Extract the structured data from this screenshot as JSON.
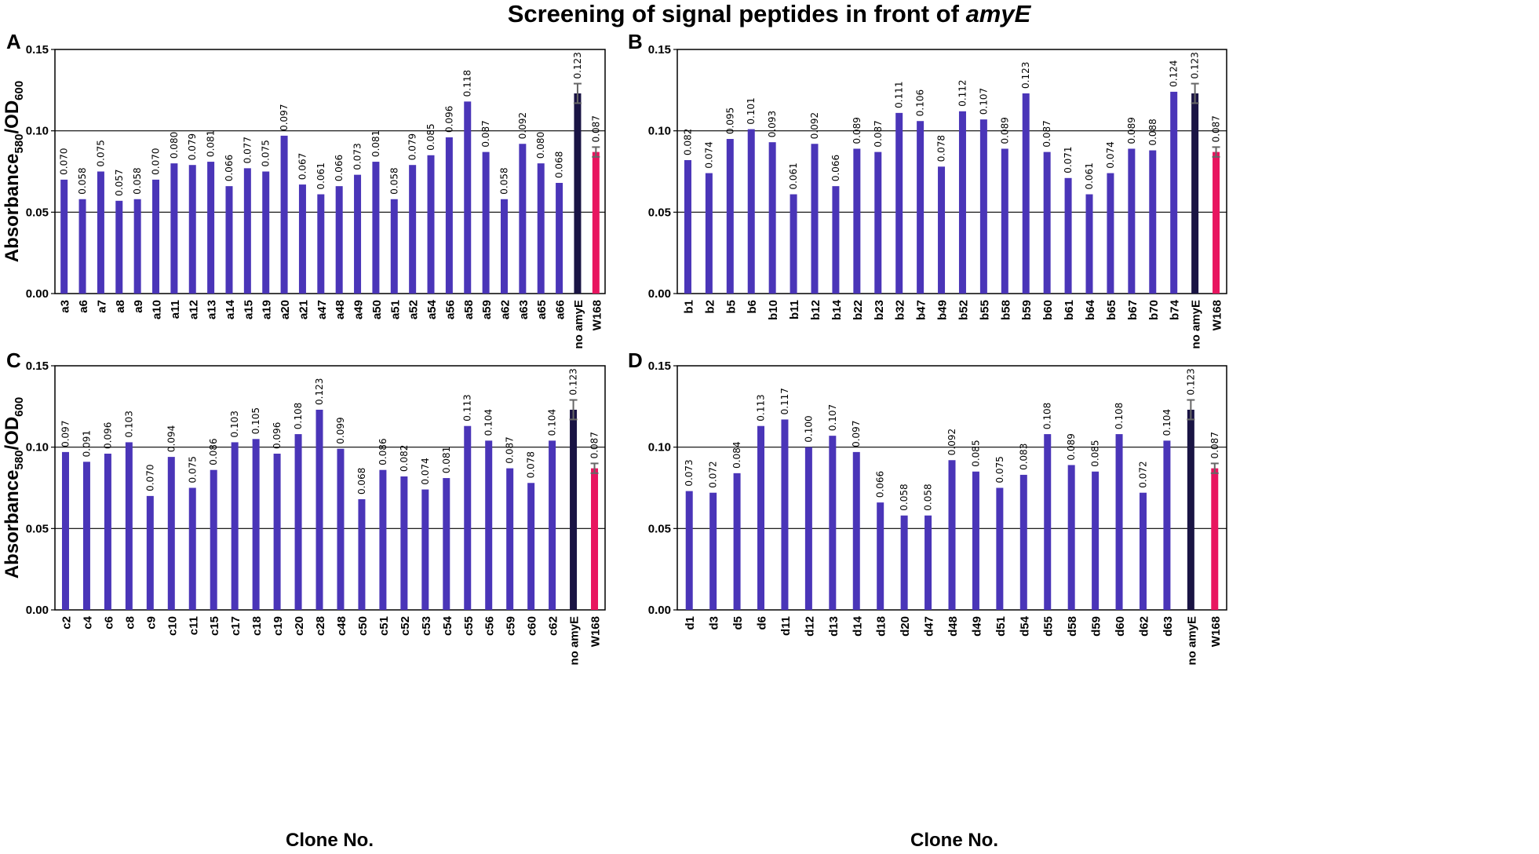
{
  "title": "Screening of signal peptides in front of ",
  "title_italic": "amyE",
  "ylabel_main": "Absorbance",
  "ylabel_sub1": "580",
  "ylabel_mid": "/OD",
  "ylabel_sub2": "600",
  "xlabel": "Clone No.",
  "colors": {
    "sample": "#4a35b8",
    "control_no_amyE": "#1a1444",
    "control_W168": "#e8155f",
    "error_bar": "#666666"
  },
  "chart_data": [
    {
      "panel": "A",
      "type": "bar",
      "ylim": [
        0,
        0.15
      ],
      "yticks": [
        "0.00",
        "0.05",
        "0.10",
        "0.15"
      ],
      "grid": "horizontal at 0.05 and 0.10",
      "categories": [
        "a3",
        "a6",
        "a7",
        "a8",
        "a9",
        "a10",
        "a11",
        "a12",
        "a13",
        "a14",
        "a15",
        "a19",
        "a20",
        "a21",
        "a47",
        "a48",
        "a49",
        "a50",
        "a51",
        "a52",
        "a54",
        "a56",
        "a58",
        "a59",
        "a62",
        "a63",
        "a65",
        "a66",
        "no amyE",
        "W168"
      ],
      "values": [
        0.07,
        0.058,
        0.075,
        0.057,
        0.058,
        0.07,
        0.08,
        0.079,
        0.081,
        0.066,
        0.077,
        0.075,
        0.097,
        0.067,
        0.061,
        0.066,
        0.073,
        0.081,
        0.058,
        0.079,
        0.085,
        0.096,
        0.118,
        0.087,
        0.058,
        0.092,
        0.08,
        0.068,
        0.123,
        0.087
      ],
      "value_labels": [
        "0.070",
        "0.058",
        "0.075",
        "0.057",
        "0.058",
        "0.070",
        "0.080",
        "0.079",
        "0.081",
        "0.066",
        "0.077",
        "0.075",
        "0.097",
        "0.067",
        "0.061",
        "0.066",
        "0.073",
        "0.081",
        "0.058",
        "0.079",
        "0.085",
        "0.096",
        "0.118",
        "0.087",
        "0.058",
        "0.092",
        "0.080",
        "0.068",
        "0.123",
        "0.087"
      ],
      "errors": {
        "no amyE": 0.006,
        "W168": 0.003
      }
    },
    {
      "panel": "B",
      "type": "bar",
      "ylim": [
        0,
        0.15
      ],
      "yticks": [
        "0.00",
        "0.05",
        "0.10",
        "0.15"
      ],
      "grid": "horizontal at 0.05 and 0.10",
      "categories": [
        "b1",
        "b2",
        "b5",
        "b6",
        "b10",
        "b11",
        "b12",
        "b14",
        "b22",
        "b23",
        "b32",
        "b47",
        "b49",
        "b52",
        "b55",
        "b58",
        "b59",
        "b60",
        "b61",
        "b64",
        "b65",
        "b67",
        "b70",
        "b74",
        "no amyE",
        "W168"
      ],
      "values": [
        0.082,
        0.074,
        0.095,
        0.101,
        0.093,
        0.061,
        0.092,
        0.066,
        0.089,
        0.087,
        0.111,
        0.106,
        0.078,
        0.112,
        0.107,
        0.089,
        0.123,
        0.087,
        0.071,
        0.061,
        0.074,
        0.089,
        0.088,
        0.124,
        0.123,
        0.087
      ],
      "value_labels": [
        "0.082",
        "0.074",
        "0.095",
        "0.101",
        "0.093",
        "0.061",
        "0.092",
        "0.066",
        "0.089",
        "0.087",
        "0.111",
        "0.106",
        "0.078",
        "0.112",
        "0.107",
        "0.089",
        "0.123",
        "0.087",
        "0.071",
        "0.061",
        "0.074",
        "0.089",
        "0.088",
        "0.124",
        "0.123",
        "0.087"
      ],
      "errors": {
        "no amyE": 0.006,
        "W168": 0.003
      }
    },
    {
      "panel": "C",
      "type": "bar",
      "ylim": [
        0,
        0.15
      ],
      "yticks": [
        "0.00",
        "0.05",
        "0.10",
        "0.15"
      ],
      "grid": "horizontal at 0.05 and 0.10",
      "categories": [
        "c2",
        "c4",
        "c6",
        "c8",
        "c9",
        "c10",
        "c11",
        "c15",
        "c17",
        "c18",
        "c19",
        "c20",
        "c28",
        "c48",
        "c50",
        "c51",
        "c52",
        "c53",
        "c54",
        "c55",
        "c56",
        "c59",
        "c60",
        "c62",
        "no amyE",
        "W168"
      ],
      "values": [
        0.097,
        0.091,
        0.096,
        0.103,
        0.07,
        0.094,
        0.075,
        0.086,
        0.103,
        0.105,
        0.096,
        0.108,
        0.123,
        0.099,
        0.068,
        0.086,
        0.082,
        0.074,
        0.081,
        0.113,
        0.104,
        0.087,
        0.078,
        0.104,
        0.123,
        0.087
      ],
      "value_labels": [
        "0.097",
        "0.091",
        "0.096",
        "0.103",
        "0.070",
        "0.094",
        "0.075",
        "0.086",
        "0.103",
        "0.105",
        "0.096",
        "0.108",
        "0.123",
        "0.099",
        "0.068",
        "0.086",
        "0.082",
        "0.074",
        "0.081",
        "0.113",
        "0.104",
        "0.087",
        "0.078",
        "0.104",
        "0.123",
        "0.087"
      ],
      "errors": {
        "no amyE": 0.006,
        "W168": 0.003
      }
    },
    {
      "panel": "D",
      "type": "bar",
      "ylim": [
        0,
        0.15
      ],
      "yticks": [
        "0.00",
        "0.05",
        "0.10",
        "0.15"
      ],
      "grid": "horizontal at 0.05 and 0.10",
      "categories": [
        "d1",
        "d3",
        "d5",
        "d6",
        "d11",
        "d12",
        "d13",
        "d14",
        "d18",
        "d20",
        "d47",
        "d48",
        "d49",
        "d51",
        "d54",
        "d55",
        "d58",
        "d59",
        "d60",
        "d62",
        "d63",
        "no amyE",
        "W168"
      ],
      "values": [
        0.073,
        0.072,
        0.084,
        0.113,
        0.117,
        0.1,
        0.107,
        0.097,
        0.066,
        0.058,
        0.058,
        0.092,
        0.085,
        0.075,
        0.083,
        0.108,
        0.089,
        0.085,
        0.108,
        0.072,
        0.104,
        0.123,
        0.087
      ],
      "value_labels": [
        "0.073",
        "0.072",
        "0.084",
        "0.113",
        "0.117",
        "0.100",
        "0.107",
        "0.097",
        "0.066",
        "0.058",
        "0.058",
        "0.092",
        "0.085",
        "0.075",
        "0.083",
        "0.108",
        "0.089",
        "0.085",
        "0.108",
        "0.072",
        "0.104",
        "0.123",
        "0.087"
      ],
      "errors": {
        "no amyE": 0.006,
        "W168": 0.003
      }
    }
  ]
}
